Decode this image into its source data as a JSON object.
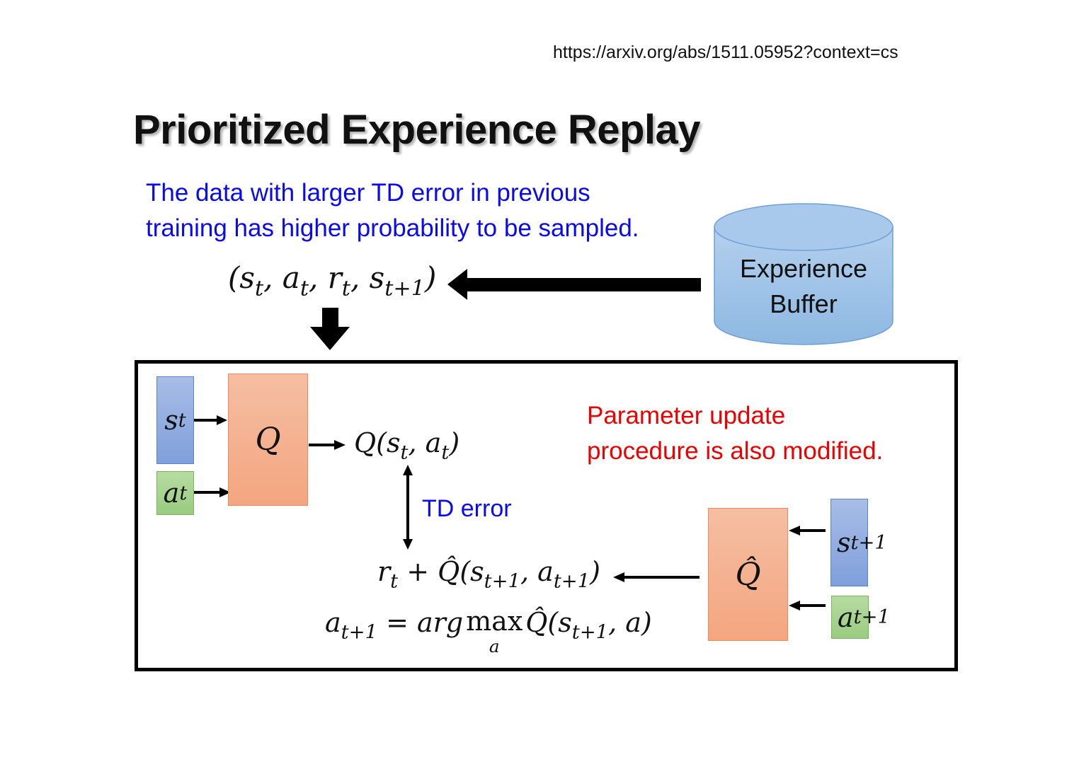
{
  "url": "https://arxiv.org/abs/1511.05952?context=cs",
  "title": "Prioritized Experience Replay",
  "description": [
    "The data with larger TD error in previous",
    "training has higher probability to be sampled."
  ],
  "buffer": {
    "line1": "Experience",
    "line2": "Buffer"
  },
  "tuple": [
    {
      "t": "(s",
      "s": "t"
    },
    {
      "t": ", a",
      "s": "t"
    },
    {
      "t": ", r",
      "s": "t"
    },
    {
      "t": ", s",
      "s": "t+1"
    },
    {
      "t": ")"
    }
  ],
  "q_network": {
    "label": "Q",
    "input_state": [
      {
        "t": "s",
        "s": "t"
      }
    ],
    "input_action": [
      {
        "t": "a",
        "s": "t"
      }
    ],
    "output": [
      {
        "t": "Q(s",
        "s": "t"
      },
      {
        "t": ", a",
        "s": "t"
      },
      {
        "t": ")"
      }
    ]
  },
  "td_error": "TD error",
  "note": [
    "Parameter update",
    "procedure is also modified."
  ],
  "target_network": {
    "label": "Q̂",
    "input_state": [
      {
        "t": "s",
        "s": "t+1"
      }
    ],
    "input_action": [
      {
        "t": "a",
        "s": "t+1"
      }
    ]
  },
  "target_formula": [
    {
      "t": "r",
      "s": "t"
    },
    {
      "t": " + Q̂(s",
      "s": "t+1"
    },
    {
      "t": ", a",
      "s": "t+1"
    },
    {
      "t": ")"
    }
  ],
  "action_formula": {
    "lhs": [
      {
        "t": "a",
        "s": "t+1"
      },
      {
        "t": " = arg "
      }
    ],
    "op": "max",
    "op_sub": "a",
    "rhs": [
      {
        "t": "Q̂(s",
        "s": "t+1"
      },
      {
        "t": ", a)"
      }
    ]
  },
  "colors": {
    "state": "#8faadc",
    "action": "#a9d18e",
    "network": "#f4b183",
    "buffer": "#9dc3e6",
    "highlight_blue": "#0a0af0",
    "highlight_red": "#ee0000"
  }
}
